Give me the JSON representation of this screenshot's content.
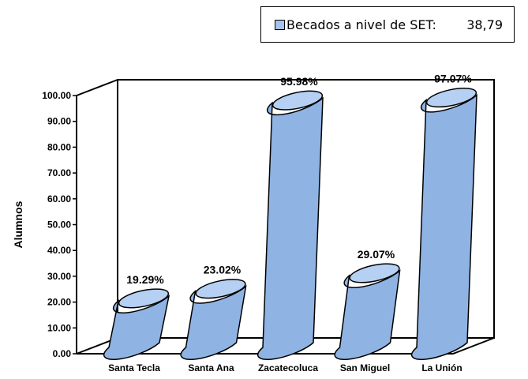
{
  "chart_data": {
    "type": "bar",
    "categories": [
      "Santa Tecla",
      "Santa Ana",
      "Zacatecoluca",
      "San Miguel",
      "La Unión"
    ],
    "values": [
      19.29,
      23.02,
      95.98,
      29.07,
      97.07
    ],
    "data_labels": [
      "19.29%",
      "23.02%",
      "95.98%",
      "29.07%",
      "97.07%"
    ],
    "yticks": [
      "0.00",
      "10.00",
      "20.00",
      "30.00",
      "40.00",
      "50.00",
      "60.00",
      "70.00",
      "80.00",
      "90.00",
      "100.00"
    ],
    "ylim": [
      0,
      100
    ],
    "ylabel": "Alumnos",
    "xlabel": "",
    "title": "",
    "bar_style": "3d-cylinder",
    "legend": {
      "position": "top-right",
      "label": "Becados a nivel de SET:",
      "value": "38,79"
    },
    "colors": {
      "bar_fill": "#8fb3e3",
      "bar_top": "#b5d0f2",
      "outline": "#000000"
    }
  }
}
